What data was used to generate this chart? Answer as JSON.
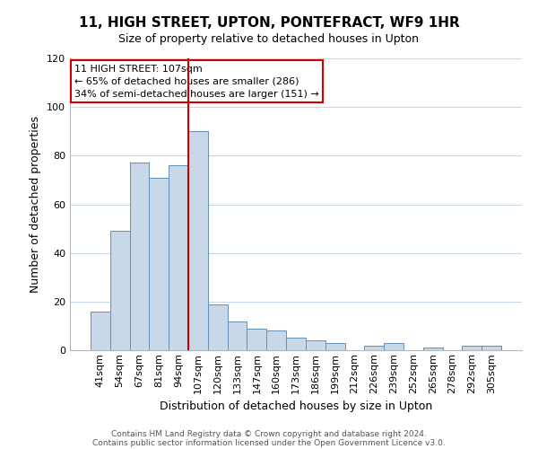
{
  "title": "11, HIGH STREET, UPTON, PONTEFRACT, WF9 1HR",
  "subtitle": "Size of property relative to detached houses in Upton",
  "xlabel": "Distribution of detached houses by size in Upton",
  "ylabel": "Number of detached properties",
  "categories": [
    "41sqm",
    "54sqm",
    "67sqm",
    "81sqm",
    "94sqm",
    "107sqm",
    "120sqm",
    "133sqm",
    "147sqm",
    "160sqm",
    "173sqm",
    "186sqm",
    "199sqm",
    "212sqm",
    "226sqm",
    "239sqm",
    "252sqm",
    "265sqm",
    "278sqm",
    "292sqm",
    "305sqm"
  ],
  "values": [
    16,
    49,
    77,
    71,
    76,
    90,
    19,
    12,
    9,
    8,
    5,
    4,
    3,
    0,
    2,
    3,
    0,
    1,
    0,
    2,
    2
  ],
  "bar_color": "#c8d8e8",
  "bar_edge_color": "#6090b8",
  "marker_index": 5,
  "marker_color": "#cc0000",
  "ylim": [
    0,
    120
  ],
  "yticks": [
    0,
    20,
    40,
    60,
    80,
    100,
    120
  ],
  "annotation_title": "11 HIGH STREET: 107sqm",
  "annotation_line1": "← 65% of detached houses are smaller (286)",
  "annotation_line2": "34% of semi-detached houses are larger (151) →",
  "annotation_box_color": "#ffffff",
  "annotation_box_edge_color": "#cc0000",
  "footer_line1": "Contains HM Land Registry data © Crown copyright and database right 2024.",
  "footer_line2": "Contains public sector information licensed under the Open Government Licence v3.0.",
  "bg_color": "#ffffff",
  "grid_color": "#c8d8e8",
  "bar_width": 1.0,
  "title_fontsize": 11,
  "subtitle_fontsize": 9,
  "ylabel_fontsize": 9,
  "xlabel_fontsize": 9,
  "tick_fontsize": 8,
  "annotation_fontsize": 8,
  "footer_fontsize": 6.5
}
